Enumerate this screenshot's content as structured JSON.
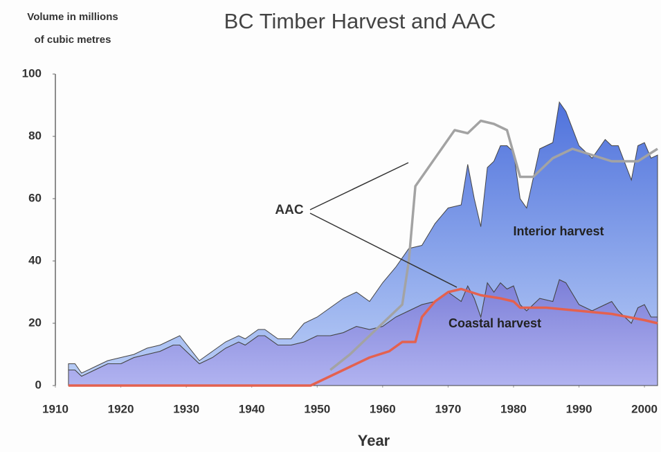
{
  "chart_data": {
    "type": "stacked_area",
    "title": "BC Timber Harvest and AAC",
    "y_label": [
      "Volume in millions",
      "of cubic metres"
    ],
    "x_label": "Year",
    "xlim": [
      1910,
      2002
    ],
    "ylim": [
      0,
      100
    ],
    "xticks": [
      1910,
      1920,
      1930,
      1940,
      1950,
      1960,
      1970,
      1980,
      1990,
      2000
    ],
    "yticks": [
      0,
      20,
      40,
      60,
      80,
      100
    ],
    "x": [
      1912,
      1913,
      1914,
      1916,
      1918,
      1920,
      1922,
      1924,
      1926,
      1928,
      1929,
      1932,
      1934,
      1936,
      1938,
      1939,
      1941,
      1942,
      1944,
      1946,
      1948,
      1950,
      1952,
      1954,
      1956,
      1958,
      1960,
      1962,
      1964,
      1966,
      1968,
      1970,
      1972,
      1973,
      1974,
      1975,
      1976,
      1977,
      1978,
      1979,
      1980,
      1981,
      1982,
      1984,
      1986,
      1987,
      1988,
      1990,
      1992,
      1994,
      1995,
      1996,
      1998,
      1999,
      2000,
      2001,
      2002
    ],
    "series": [
      {
        "name": "Coastal harvest",
        "color": "#8f8fe0",
        "values": [
          5,
          5,
          3,
          5,
          7,
          7,
          9,
          10,
          11,
          13,
          13,
          7,
          9,
          12,
          14,
          13,
          16,
          16,
          13,
          13,
          14,
          16,
          16,
          17,
          19,
          18,
          19,
          22,
          24,
          26,
          27,
          30,
          27,
          32,
          28,
          22,
          33,
          30,
          33,
          31,
          32,
          26,
          24,
          28,
          27,
          34,
          33,
          26,
          24,
          26,
          27,
          24,
          20,
          25,
          26,
          22,
          22
        ]
      },
      {
        "name": "Interior harvest",
        "color": "#5f82e4",
        "values": [
          2,
          2,
          1,
          1,
          1,
          2,
          1,
          2,
          2,
          2,
          3,
          1,
          2,
          2,
          2,
          2,
          2,
          2,
          2,
          2,
          6,
          6,
          9,
          11,
          11,
          9,
          14,
          16,
          20,
          19,
          25,
          27,
          31,
          39,
          32,
          29,
          37,
          42,
          44,
          46,
          43,
          34,
          33,
          48,
          51,
          57,
          55,
          51,
          49,
          53,
          50,
          53,
          46,
          52,
          52,
          51,
          52
        ]
      }
    ],
    "annotation": "AAC",
    "lines": [
      {
        "color": "#a3a3a3",
        "x": [
          1952,
          1955,
          1958,
          1961,
          1963,
          1964,
          1965,
          1967,
          1969,
          1971,
          1973,
          1975,
          1977,
          1979,
          1981,
          1983,
          1986,
          1989,
          1992,
          1995,
          1999,
          2002
        ],
        "values": [
          5,
          10,
          16,
          22,
          26,
          40,
          64,
          70,
          76,
          82,
          81,
          85,
          84,
          82,
          67,
          67,
          73,
          76,
          74,
          72,
          72,
          76
        ]
      },
      {
        "color": "#e4614f",
        "x": [
          1912,
          1949,
          1952,
          1955,
          1958,
          1961,
          1963,
          1965,
          1966,
          1968,
          1970,
          1972,
          1975,
          1978,
          1980,
          1981,
          1985,
          1990,
          1995,
          2000,
          2002
        ],
        "values": [
          0,
          0,
          3,
          6,
          9,
          11,
          14,
          14,
          22,
          27,
          30,
          31,
          29,
          28,
          27,
          25,
          25,
          24,
          23,
          21,
          20
        ]
      }
    ]
  }
}
